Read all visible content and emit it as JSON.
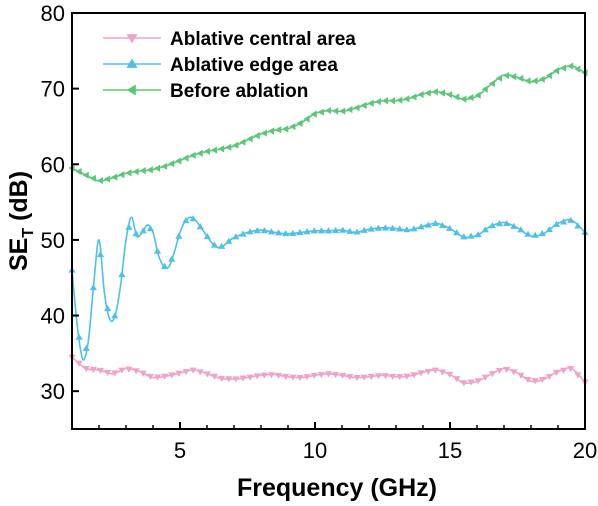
{
  "chart_data": {
    "type": "line",
    "xlabel": "Frequency (GHz)",
    "ylabel_main": "SE",
    "ylabel_sub": "T",
    "ylabel_unit": " (dB)",
    "xlim": [
      1,
      20
    ],
    "ylim": [
      25,
      80
    ],
    "xticks": [
      5,
      10,
      15,
      20
    ],
    "yticks": [
      30,
      40,
      50,
      60,
      70,
      80
    ],
    "xtick_labels": [
      "5",
      "10",
      "15",
      "20"
    ],
    "ytick_labels": [
      "30",
      "40",
      "50",
      "60",
      "70",
      "80"
    ],
    "grid": false,
    "legend_position": "top-left",
    "series": [
      {
        "name": "Ablative central area",
        "color": "#f0a3c6",
        "marker": "triangle-down",
        "x": [
          1.0,
          1.5,
          2.0,
          2.5,
          3.0,
          3.5,
          4.0,
          4.5,
          5.0,
          5.5,
          6.0,
          6.5,
          7.0,
          7.5,
          8.0,
          8.5,
          9.0,
          9.5,
          10.0,
          10.5,
          11.0,
          11.5,
          12.0,
          12.5,
          13.0,
          13.5,
          14.0,
          14.5,
          15.0,
          15.5,
          16.0,
          16.5,
          17.0,
          17.5,
          18.0,
          18.5,
          19.0,
          19.5,
          20.0
        ],
        "y": [
          34.5,
          33.0,
          32.8,
          32.3,
          33.0,
          32.6,
          31.8,
          32.0,
          32.4,
          32.8,
          32.3,
          31.7,
          31.6,
          31.8,
          32.1,
          32.2,
          31.9,
          31.8,
          32.1,
          32.3,
          32.1,
          31.8,
          31.9,
          32.1,
          31.9,
          32.0,
          32.5,
          32.8,
          32.2,
          31.1,
          31.3,
          32.2,
          33.0,
          32.4,
          31.3,
          31.6,
          32.6,
          33.0,
          31.2
        ]
      },
      {
        "name": "Ablative edge area",
        "color": "#4fc0e8",
        "marker": "triangle-up",
        "x": [
          1.0,
          1.2,
          1.4,
          1.6,
          1.8,
          2.0,
          2.2,
          2.4,
          2.6,
          2.8,
          3.0,
          3.2,
          3.4,
          3.6,
          3.8,
          4.0,
          4.2,
          4.4,
          4.6,
          4.8,
          5.0,
          5.2,
          5.4,
          5.6,
          5.8,
          6.0,
          6.2,
          6.4,
          6.6,
          6.8,
          7.0,
          7.5,
          8.0,
          8.5,
          9.0,
          9.5,
          10.0,
          10.5,
          11.0,
          11.5,
          12.0,
          12.5,
          13.0,
          13.5,
          14.0,
          14.5,
          15.0,
          15.5,
          16.0,
          16.5,
          17.0,
          17.5,
          18.0,
          18.5,
          19.0,
          19.5,
          20.0
        ],
        "y": [
          46.0,
          38.5,
          34.2,
          36.5,
          44.0,
          50.0,
          43.0,
          39.5,
          40.0,
          44.0,
          50.0,
          53.0,
          50.5,
          51.0,
          52.0,
          51.0,
          48.0,
          46.5,
          46.5,
          48.5,
          51.0,
          52.5,
          53.0,
          52.5,
          51.5,
          50.5,
          49.5,
          49.0,
          49.2,
          49.8,
          50.3,
          51.0,
          51.3,
          51.0,
          50.8,
          51.0,
          51.2,
          51.2,
          51.3,
          51.0,
          51.4,
          51.6,
          51.5,
          51.3,
          51.8,
          52.2,
          51.5,
          50.4,
          50.6,
          51.8,
          52.3,
          51.6,
          50.5,
          50.9,
          52.2,
          52.6,
          51.0
        ]
      },
      {
        "name": "Before ablation",
        "color": "#5cc77a",
        "marker": "triangle-left",
        "x": [
          1.0,
          1.5,
          2.0,
          2.5,
          3.0,
          3.5,
          4.0,
          4.5,
          5.0,
          5.5,
          6.0,
          6.5,
          7.0,
          7.5,
          8.0,
          8.5,
          9.0,
          9.5,
          10.0,
          10.5,
          11.0,
          11.5,
          12.0,
          12.5,
          13.0,
          13.5,
          14.0,
          14.5,
          15.0,
          15.5,
          16.0,
          16.5,
          17.0,
          17.5,
          18.0,
          18.5,
          19.0,
          19.5,
          20.0
        ],
        "y": [
          59.5,
          58.6,
          57.8,
          58.2,
          58.8,
          59.1,
          59.3,
          59.8,
          60.5,
          61.2,
          61.7,
          62.0,
          62.4,
          63.2,
          64.0,
          64.5,
          64.7,
          65.5,
          66.7,
          67.1,
          67.0,
          67.4,
          68.0,
          68.4,
          68.4,
          68.7,
          69.3,
          69.6,
          69.2,
          68.6,
          69.0,
          70.5,
          71.8,
          71.5,
          70.9,
          71.3,
          72.5,
          73.0,
          72.1
        ]
      }
    ]
  }
}
